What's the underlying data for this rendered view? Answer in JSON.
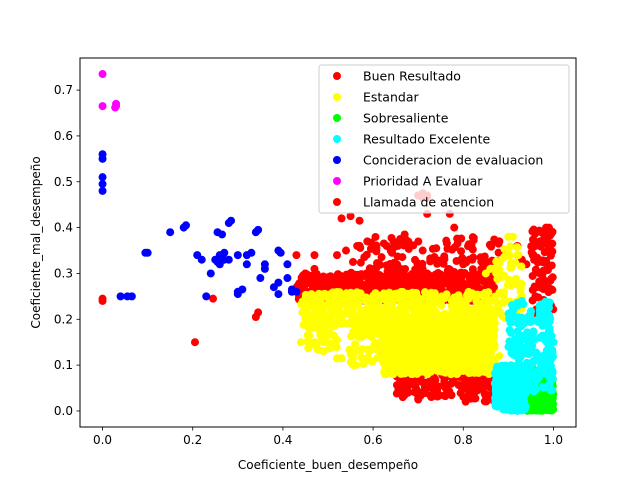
{
  "chart_data": {
    "type": "scatter",
    "xlabel": "Coeficiente_buen_desempeño",
    "ylabel": "Coeficiente_mal_desempeño",
    "xlim": [
      -0.05,
      1.05
    ],
    "ylim": [
      -0.035,
      0.77
    ],
    "xticks": [
      0.0,
      0.2,
      0.4,
      0.6,
      0.8,
      1.0
    ],
    "xtick_labels": [
      "0.0",
      "0.2",
      "0.4",
      "0.6",
      "0.8",
      "1.0"
    ],
    "yticks": [
      0.0,
      0.1,
      0.2,
      0.3,
      0.4,
      0.5,
      0.6,
      0.7
    ],
    "ytick_labels": [
      "0.0",
      "0.1",
      "0.2",
      "0.3",
      "0.4",
      "0.5",
      "0.6",
      "0.7"
    ],
    "grid": false,
    "legend_position": "top-right",
    "series": [
      {
        "name": "Buen Resultado",
        "color": "#ff0000",
        "regions": [
          {
            "x": [
              0.43,
              0.87
            ],
            "y": [
              0.24,
              0.3
            ],
            "n": 700
          },
          {
            "x": [
              0.55,
              0.88
            ],
            "y": [
              0.3,
              0.38
            ],
            "n": 120
          },
          {
            "x": [
              0.65,
              0.8
            ],
            "y": [
              0.03,
              0.12
            ],
            "n": 150
          },
          {
            "x": [
              0.8,
              0.89
            ],
            "y": [
              0.02,
              0.1
            ],
            "n": 100
          },
          {
            "x": [
              0.95,
              1.0
            ],
            "y": [
              0.2,
              0.4
            ],
            "n": 90
          }
        ],
        "points": [
          [
            0.0,
            0.245
          ],
          [
            0.0,
            0.24
          ],
          [
            0.245,
            0.245
          ],
          [
            0.205,
            0.15
          ],
          [
            0.345,
            0.215
          ],
          [
            0.34,
            0.205
          ],
          [
            0.43,
            0.34
          ],
          [
            0.47,
            0.34
          ],
          [
            0.52,
            0.34
          ],
          [
            0.54,
            0.35
          ],
          [
            0.53,
            0.42
          ],
          [
            0.55,
            0.425
          ],
          [
            0.57,
            0.415
          ],
          [
            0.63,
            0.36
          ],
          [
            0.66,
            0.375
          ],
          [
            0.67,
            0.385
          ],
          [
            0.7,
            0.47
          ],
          [
            0.71,
            0.47
          ],
          [
            0.72,
            0.465
          ],
          [
            0.72,
            0.43
          ],
          [
            0.77,
            0.43
          ],
          [
            0.78,
            0.4
          ],
          [
            0.7,
            0.025
          ],
          [
            0.67,
            0.035
          ],
          [
            0.66,
            0.04
          ],
          [
            0.66,
            0.065
          ],
          [
            0.69,
            0.09
          ],
          [
            0.72,
            0.3
          ],
          [
            0.71,
            0.35
          ],
          [
            0.74,
            0.355
          ],
          [
            0.88,
            0.37
          ],
          [
            0.96,
            0.39
          ],
          [
            0.98,
            0.38
          ],
          [
            0.99,
            0.4
          ],
          [
            0.99,
            0.36
          ],
          [
            0.97,
            0.37
          ],
          [
            0.92,
            0.36
          ],
          [
            0.93,
            0.33
          ],
          [
            0.94,
            0.32
          ],
          [
            0.97,
            0.3
          ],
          [
            0.96,
            0.25
          ],
          [
            0.45,
            0.3
          ],
          [
            0.47,
            0.31
          ],
          [
            0.65,
            0.31
          ],
          [
            0.63,
            0.29
          ],
          [
            0.64,
            0.32
          ],
          [
            0.8,
            0.32
          ],
          [
            0.82,
            0.33
          ],
          [
            0.84,
            0.31
          ]
        ]
      },
      {
        "name": "Estandar",
        "color": "#ffff00",
        "regions": [
          {
            "x": [
              0.44,
              0.87
            ],
            "y": [
              0.18,
              0.26
            ],
            "n": 500
          },
          {
            "x": [
              0.62,
              0.87
            ],
            "y": [
              0.08,
              0.2
            ],
            "n": 950
          },
          {
            "x": [
              0.55,
              0.7
            ],
            "y": [
              0.1,
              0.2
            ],
            "n": 120
          },
          {
            "x": [
              0.45,
              0.55
            ],
            "y": [
              0.13,
              0.2
            ],
            "n": 40
          },
          {
            "x": [
              0.87,
              0.93
            ],
            "y": [
              0.2,
              0.36
            ],
            "n": 60
          }
        ],
        "points": [
          [
            0.44,
            0.15
          ],
          [
            0.46,
            0.15
          ],
          [
            0.47,
            0.15
          ],
          [
            0.52,
            0.115
          ],
          [
            0.53,
            0.115
          ],
          [
            0.52,
            0.155
          ],
          [
            0.55,
            0.13
          ],
          [
            0.91,
            0.38
          ],
          [
            0.9,
            0.38
          ],
          [
            0.92,
            0.34
          ],
          [
            0.85,
            0.3
          ],
          [
            0.86,
            0.31
          ],
          [
            0.93,
            0.25
          ],
          [
            0.92,
            0.22
          ],
          [
            0.88,
            0.12
          ],
          [
            0.87,
            0.11
          ]
        ]
      },
      {
        "name": "Sobresaliente",
        "color": "#00ff00",
        "regions": [
          {
            "x": [
              0.935,
              1.0
            ],
            "y": [
              0.0,
              0.07
            ],
            "n": 350
          },
          {
            "x": [
              0.95,
              0.99
            ],
            "y": [
              0.06,
              0.09
            ],
            "n": 20
          }
        ],
        "points": []
      },
      {
        "name": "Resultado Excelente",
        "color": "#00ffff",
        "regions": [
          {
            "x": [
              0.87,
              0.94
            ],
            "y": [
              0.0,
              0.1
            ],
            "n": 250
          },
          {
            "x": [
              0.9,
              1.0
            ],
            "y": [
              0.04,
              0.24
            ],
            "n": 200
          }
        ],
        "points": [
          [
            0.99,
            0.225
          ],
          [
            0.99,
            0.235
          ],
          [
            0.98,
            0.215
          ],
          [
            0.99,
            0.14
          ],
          [
            1.0,
            0.15
          ],
          [
            0.99,
            0.075
          ],
          [
            0.91,
            0.015
          ],
          [
            0.9,
            0.005
          ],
          [
            0.92,
            0.0
          ]
        ]
      },
      {
        "name": "Concideracion de evaluacion",
        "color": "#0000ff",
        "regions": [],
        "points": [
          [
            0.0,
            0.55
          ],
          [
            0.0,
            0.56
          ],
          [
            0.0,
            0.51
          ],
          [
            0.0,
            0.495
          ],
          [
            0.0,
            0.48
          ],
          [
            0.04,
            0.25
          ],
          [
            0.055,
            0.25
          ],
          [
            0.065,
            0.25
          ],
          [
            0.095,
            0.345
          ],
          [
            0.1,
            0.345
          ],
          [
            0.15,
            0.39
          ],
          [
            0.18,
            0.4
          ],
          [
            0.185,
            0.405
          ],
          [
            0.21,
            0.34
          ],
          [
            0.22,
            0.33
          ],
          [
            0.23,
            0.25
          ],
          [
            0.24,
            0.3
          ],
          [
            0.25,
            0.33
          ],
          [
            0.255,
            0.39
          ],
          [
            0.265,
            0.385
          ],
          [
            0.26,
            0.34
          ],
          [
            0.27,
            0.345
          ],
          [
            0.255,
            0.325
          ],
          [
            0.26,
            0.32
          ],
          [
            0.27,
            0.33
          ],
          [
            0.28,
            0.41
          ],
          [
            0.285,
            0.415
          ],
          [
            0.3,
            0.34
          ],
          [
            0.3,
            0.26
          ],
          [
            0.31,
            0.265
          ],
          [
            0.28,
            0.33
          ],
          [
            0.32,
            0.34
          ],
          [
            0.33,
            0.345
          ],
          [
            0.32,
            0.32
          ],
          [
            0.34,
            0.39
          ],
          [
            0.345,
            0.395
          ],
          [
            0.36,
            0.32
          ],
          [
            0.35,
            0.29
          ],
          [
            0.36,
            0.31
          ],
          [
            0.38,
            0.27
          ],
          [
            0.39,
            0.28
          ],
          [
            0.39,
            0.255
          ],
          [
            0.39,
            0.35
          ],
          [
            0.395,
            0.345
          ],
          [
            0.41,
            0.32
          ],
          [
            0.41,
            0.29
          ],
          [
            0.42,
            0.265
          ],
          [
            0.42,
            0.26
          ],
          [
            0.43,
            0.26
          ],
          [
            0.3,
            0.255
          ]
        ]
      },
      {
        "name": "Prioridad A Evaluar",
        "color": "#ff00ff",
        "regions": [],
        "points": [
          [
            0.0,
            0.735
          ],
          [
            0.0,
            0.665
          ],
          [
            0.03,
            0.67
          ],
          [
            0.03,
            0.665
          ],
          [
            0.028,
            0.662
          ]
        ]
      },
      {
        "name": "Llamada de atencion",
        "color": "#ff0000",
        "regions": [],
        "points": [
          [
            0.7,
            0.47
          ],
          [
            0.71,
            0.475
          ],
          [
            0.72,
            0.47
          ],
          [
            0.71,
            0.465
          ]
        ]
      }
    ]
  }
}
